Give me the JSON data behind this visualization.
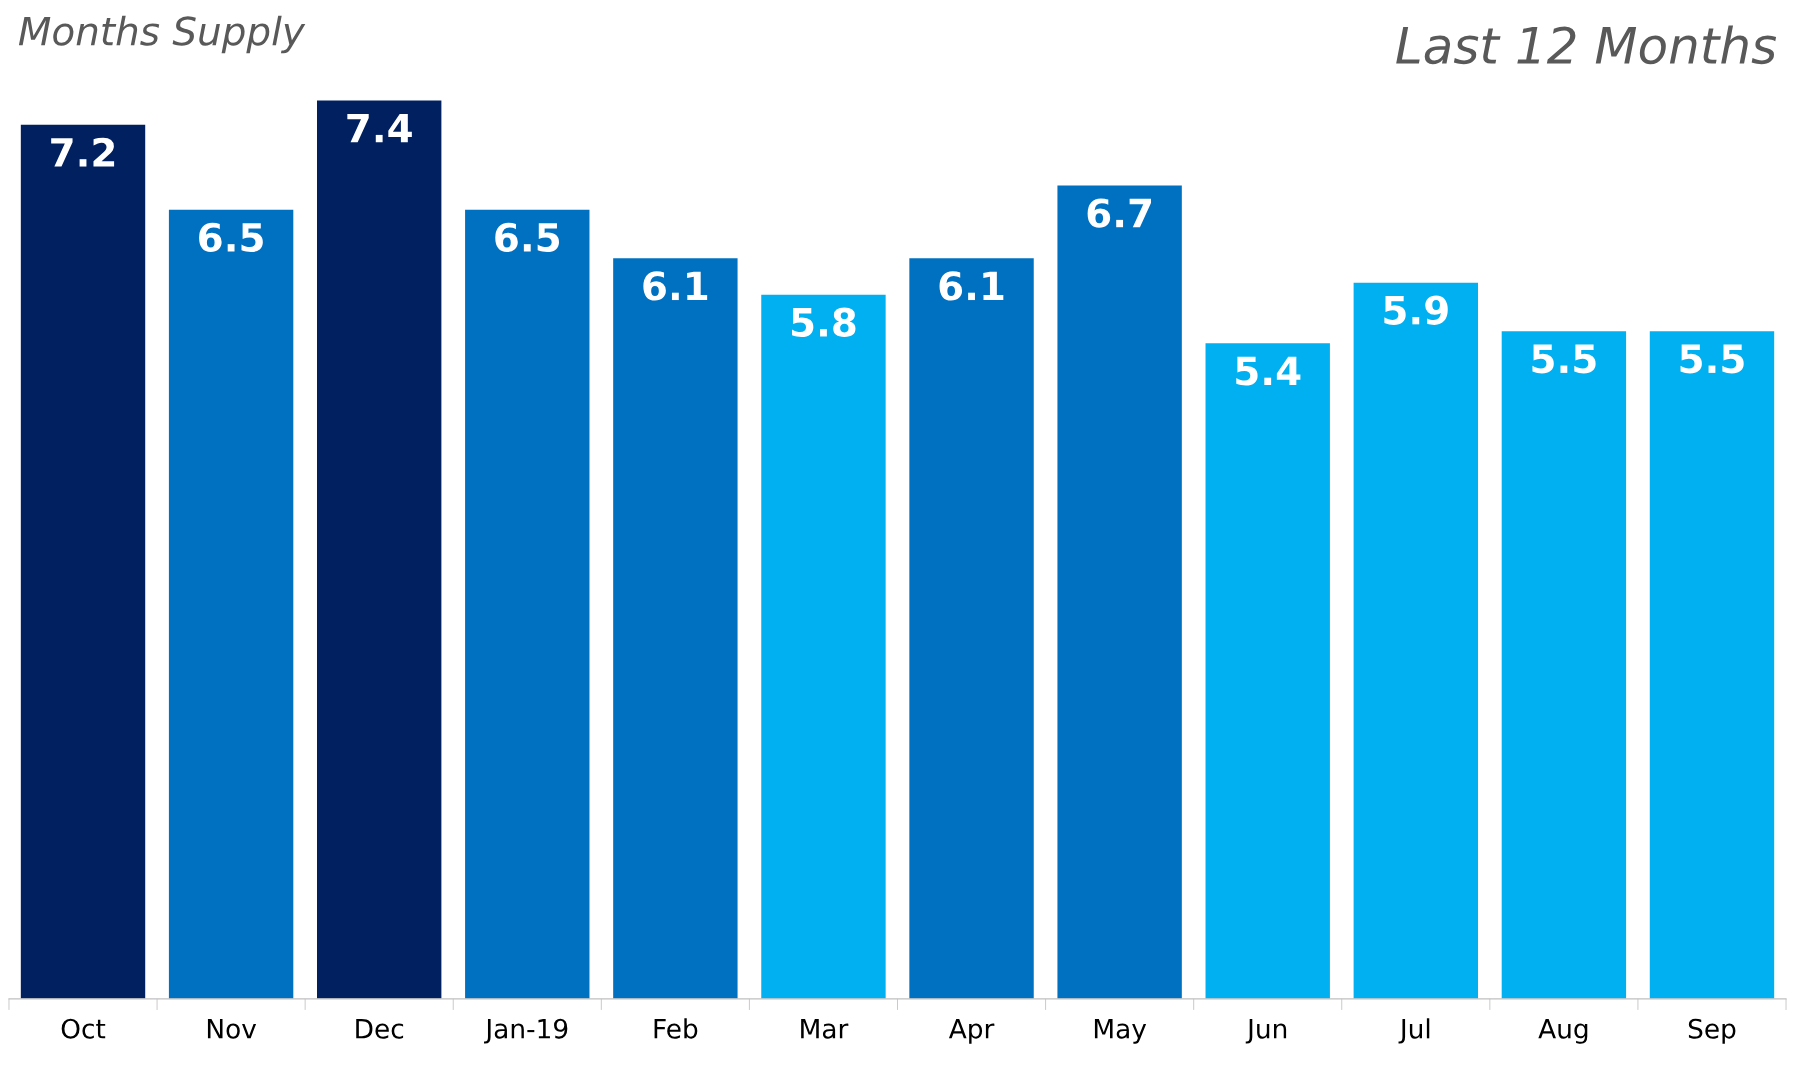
{
  "chart_data": {
    "type": "bar",
    "title": "Last 12 Months",
    "annotations": [
      "Months Supply"
    ],
    "categories": [
      "Oct",
      "Nov",
      "Dec",
      "Jan-19",
      "Feb",
      "Mar",
      "Apr",
      "May",
      "Jun",
      "Jul",
      "Aug",
      "Sep"
    ],
    "values": [
      7.2,
      6.5,
      7.4,
      6.5,
      6.1,
      5.8,
      6.1,
      6.7,
      5.4,
      5.9,
      5.5,
      5.5
    ],
    "colors": [
      "#002060",
      "#0070c0",
      "#002060",
      "#0070c0",
      "#0070c0",
      "#00b0f0",
      "#0070c0",
      "#0070c0",
      "#00b0f0",
      "#00b0f0",
      "#00b0f0",
      "#00b0f0"
    ],
    "data_labels": true,
    "grid": false,
    "legend": false,
    "tick_labels": "x"
  }
}
